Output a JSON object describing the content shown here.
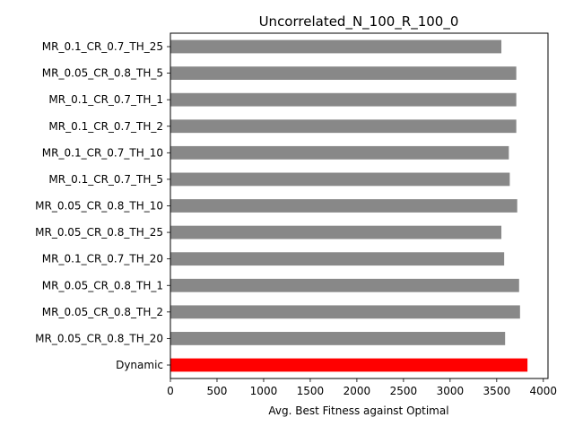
{
  "chart_data": {
    "type": "bar",
    "orientation": "horizontal",
    "title": "Uncorrelated_N_100_R_100_0",
    "xlabel": "Avg. Best Fitness against Optimal",
    "ylabel": "",
    "xlim": [
      0,
      4050
    ],
    "xticks": [
      0,
      500,
      1000,
      1500,
      2000,
      2500,
      3000,
      3500,
      4000
    ],
    "grid": false,
    "categories": [
      "MR_0.1_CR_0.7_TH_25",
      "MR_0.05_CR_0.8_TH_5",
      "MR_0.1_CR_0.7_TH_1",
      "MR_0.1_CR_0.7_TH_2",
      "MR_0.1_CR_0.7_TH_10",
      "MR_0.1_CR_0.7_TH_5",
      "MR_0.05_CR_0.8_TH_10",
      "MR_0.05_CR_0.8_TH_25",
      "MR_0.1_CR_0.7_TH_20",
      "MR_0.05_CR_0.8_TH_1",
      "MR_0.05_CR_0.8_TH_2",
      "MR_0.05_CR_0.8_TH_20",
      "Dynamic"
    ],
    "values": [
      3550,
      3710,
      3710,
      3710,
      3630,
      3640,
      3720,
      3550,
      3580,
      3740,
      3750,
      3590,
      3830
    ],
    "colors": [
      "#888888",
      "#888888",
      "#888888",
      "#888888",
      "#888888",
      "#888888",
      "#888888",
      "#888888",
      "#888888",
      "#888888",
      "#888888",
      "#888888",
      "#ff0000"
    ]
  }
}
